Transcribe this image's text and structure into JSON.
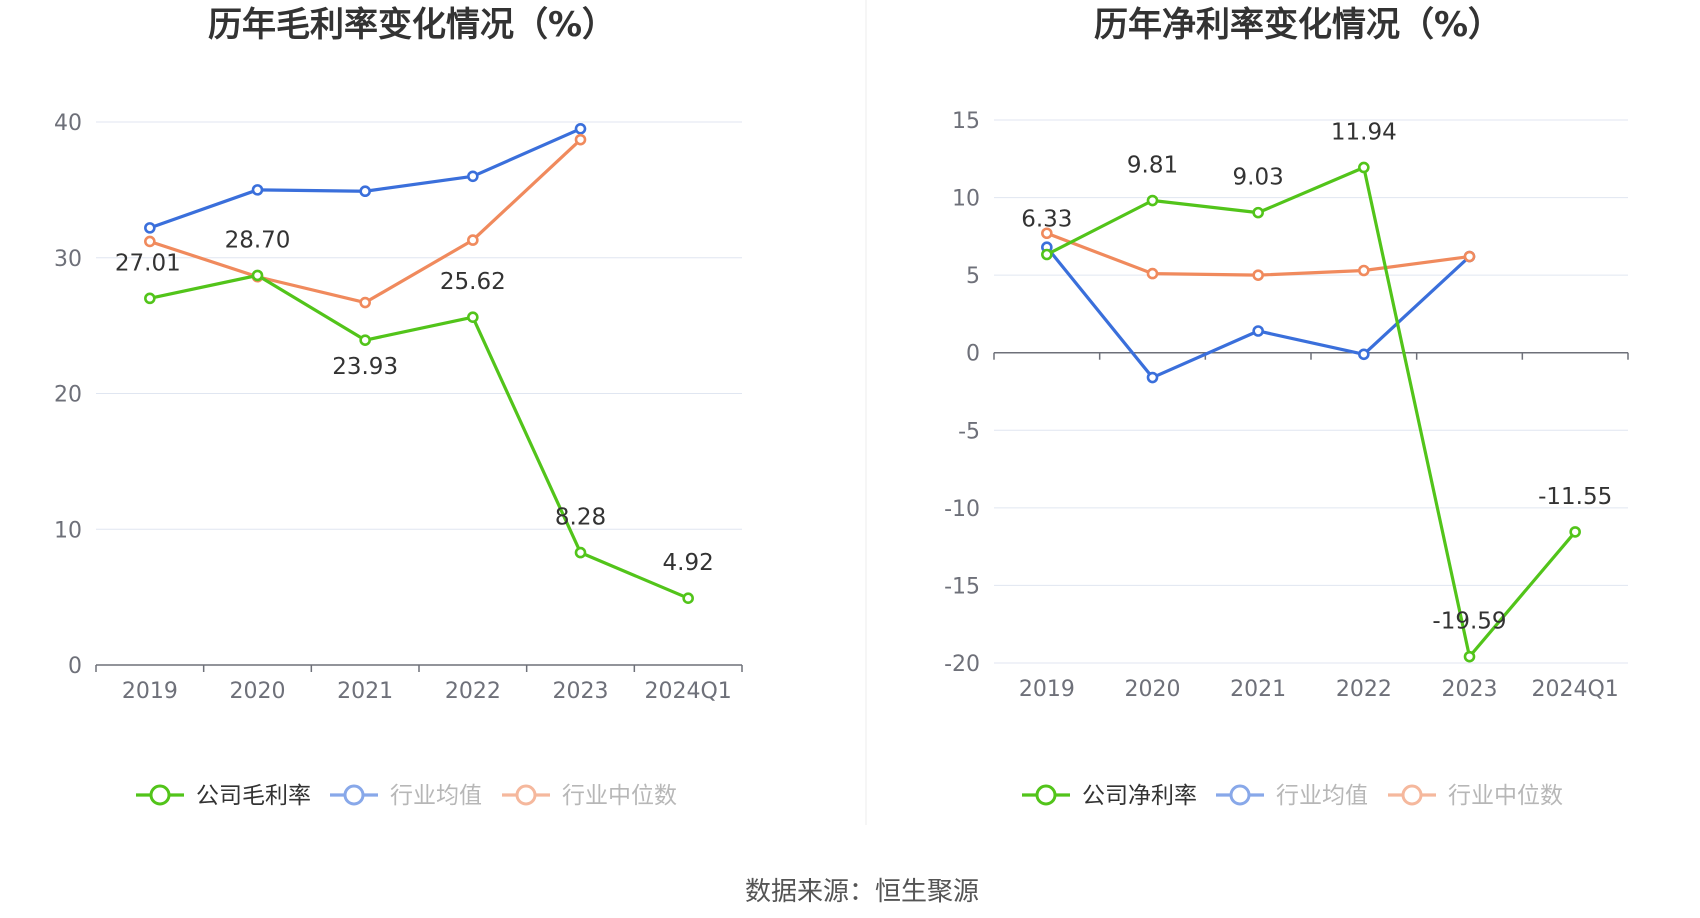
{
  "source_label": "数据来源：恒生聚源",
  "colors": {
    "company": "#52c41a",
    "industry_avg": "#3a6fdb",
    "industry_median": "#f08a5d",
    "grid": "#e0e6f1",
    "axis": "#6e7079",
    "divider": "#eeeeee"
  },
  "chart_data": [
    {
      "type": "line",
      "title": "历年毛利率变化情况（%）",
      "categories": [
        "2019",
        "2020",
        "2021",
        "2022",
        "2023",
        "2024Q1"
      ],
      "ylim": [
        0,
        40
      ],
      "yticks": [
        "0",
        "10",
        "20",
        "30",
        "40"
      ],
      "grid": true,
      "legend_position": "bottom",
      "series": [
        {
          "name": "公司毛利率",
          "key": "company",
          "values": [
            27.01,
            28.7,
            23.93,
            25.62,
            8.28,
            4.92
          ],
          "labels": [
            "27.01",
            "28.70",
            "23.93",
            "25.62",
            "8.28",
            "4.92"
          ]
        },
        {
          "name": "行业均值",
          "key": "industry_avg",
          "values": [
            32.2,
            35.0,
            34.9,
            36.0,
            39.5,
            null
          ]
        },
        {
          "name": "行业中位数",
          "key": "industry_median",
          "values": [
            31.2,
            28.6,
            26.7,
            31.3,
            38.7,
            null
          ]
        }
      ]
    },
    {
      "type": "line",
      "title": "历年净利率变化情况（%）",
      "categories": [
        "2019",
        "2020",
        "2021",
        "2022",
        "2023",
        "2024Q1"
      ],
      "ylim": [
        -20,
        15
      ],
      "yticks": [
        "-20",
        "-15",
        "-10",
        "-5",
        "0",
        "5",
        "10",
        "15"
      ],
      "grid": true,
      "legend_position": "bottom",
      "series": [
        {
          "name": "公司净利率",
          "key": "company",
          "values": [
            6.33,
            9.81,
            9.03,
            11.94,
            -19.59,
            -11.55
          ],
          "labels": [
            "6.33",
            "9.81",
            "9.03",
            "11.94",
            "-19.59",
            "-11.55"
          ]
        },
        {
          "name": "行业均值",
          "key": "industry_avg",
          "values": [
            6.8,
            -1.6,
            1.4,
            -0.1,
            6.2,
            null
          ]
        },
        {
          "name": "行业中位数",
          "key": "industry_median",
          "values": [
            7.7,
            5.1,
            5.0,
            5.3,
            6.2,
            null
          ]
        }
      ]
    }
  ]
}
